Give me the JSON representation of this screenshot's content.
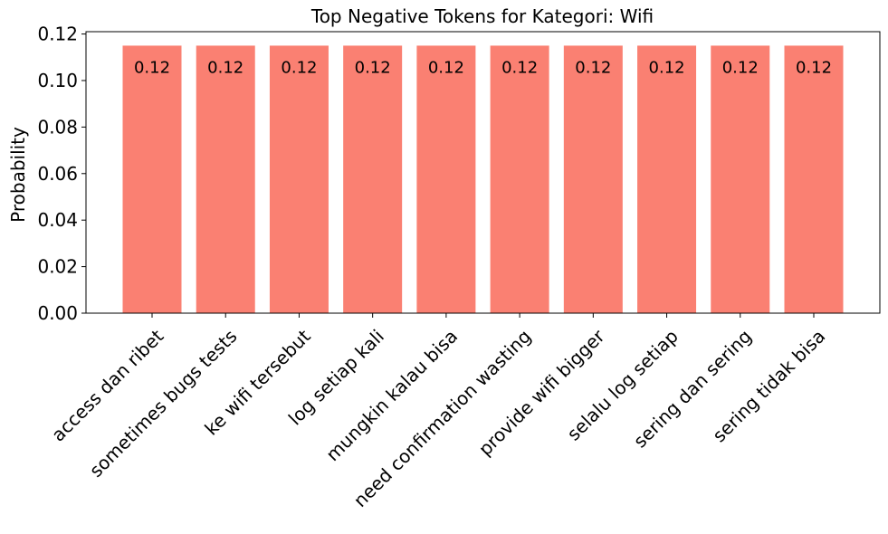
{
  "chart_data": {
    "type": "bar",
    "title": "Top Negative Tokens for Kategori: Wifi",
    "xlabel": "",
    "ylabel": "Probability",
    "categories": [
      "access dan ribet",
      "sometimes bugs tests",
      "ke wifi tersebut",
      "log setiap kali",
      "mungkin kalau bisa",
      "need confirmation wasting",
      "provide wifi bigger",
      "selalu log setiap",
      "sering dan sering",
      "sering tidak bisa"
    ],
    "values": [
      0.115,
      0.115,
      0.115,
      0.115,
      0.115,
      0.115,
      0.115,
      0.115,
      0.115,
      0.115
    ],
    "data_labels": [
      "0.12",
      "0.12",
      "0.12",
      "0.12",
      "0.12",
      "0.12",
      "0.12",
      "0.12",
      "0.12",
      "0.12"
    ],
    "ylim": [
      0,
      0.121
    ],
    "yticks": [
      0.0,
      0.02,
      0.04,
      0.06,
      0.08,
      0.1,
      0.12
    ],
    "ytick_labels": [
      "0.00",
      "0.02",
      "0.04",
      "0.06",
      "0.08",
      "0.10",
      "0.12"
    ],
    "grid": false,
    "bar_color": "#fa8072"
  }
}
